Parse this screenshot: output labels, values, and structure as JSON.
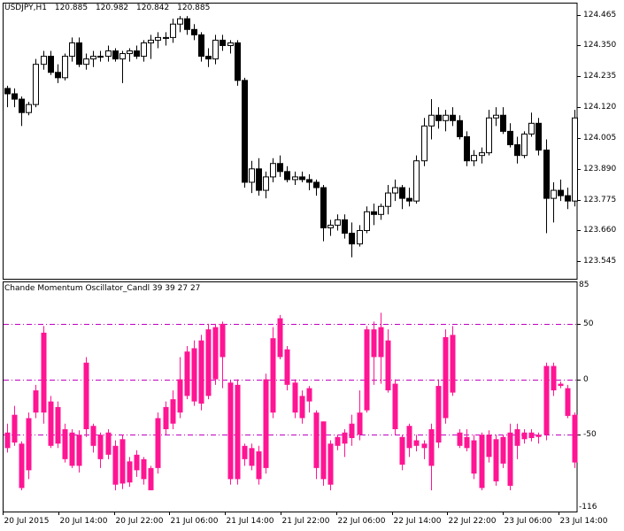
{
  "price_panel": {
    "symbol": "USDJPY,H1",
    "open": "120.885",
    "high": "120.982",
    "low": "120.842",
    "close": "120.885",
    "price_labels": [
      "124.465",
      "124.350",
      "124.235",
      "124.120",
      "124.005",
      "123.890",
      "123.775",
      "123.660",
      "123.545"
    ]
  },
  "indicator_panel": {
    "title": "Chande Momentum Oscillator_Candl 39 39 27 27",
    "top_label": "85",
    "bottom_label": "-116",
    "level_labels": [
      "50",
      "0",
      "-50"
    ]
  },
  "time_axis": {
    "labels": [
      "20 Jul 2015",
      "20 Jul 14:00",
      "20 Jul 22:00",
      "21 Jul 06:00",
      "21 Jul 14:00",
      "21 Jul 22:00",
      "22 Jul 06:00",
      "22 Jul 14:00",
      "22 Jul 22:00",
      "23 Jul 06:00",
      "23 Jul 14:00"
    ]
  },
  "colors": {
    "bull_body": "#ffffff",
    "bear_body": "#000000",
    "osc_up": "#008080",
    "osc_down": "#ff1493",
    "level_line": "#c000c0"
  },
  "chart_data": [
    {
      "type": "candlestick",
      "title": "USDJPY,H1",
      "ylim": [
        123.48,
        124.51
      ],
      "yticks": [
        124.465,
        124.35,
        124.235,
        124.12,
        124.005,
        123.89,
        123.775,
        123.66,
        123.545
      ],
      "x_tick_labels": [
        "20 Jul 2015",
        "20 Jul 14:00",
        "20 Jul 22:00",
        "21 Jul 06:00",
        "21 Jul 14:00",
        "21 Jul 22:00",
        "22 Jul 06:00",
        "22 Jul 14:00",
        "22 Jul 22:00",
        "23 Jul 06:00",
        "23 Jul 14:00"
      ],
      "candles_ohlc": [
        [
          124.19,
          124.2,
          124.12,
          124.17
        ],
        [
          124.17,
          124.19,
          124.12,
          124.15
        ],
        [
          124.15,
          124.16,
          124.05,
          124.1
        ],
        [
          124.1,
          124.14,
          124.09,
          124.13
        ],
        [
          124.13,
          124.3,
          124.12,
          124.28
        ],
        [
          124.28,
          124.33,
          124.26,
          124.31
        ],
        [
          124.31,
          124.33,
          124.24,
          124.25
        ],
        [
          124.25,
          124.28,
          124.21,
          124.23
        ],
        [
          124.23,
          124.32,
          124.22,
          124.31
        ],
        [
          124.31,
          124.38,
          124.29,
          124.36
        ],
        [
          124.36,
          124.38,
          124.27,
          124.28
        ],
        [
          124.28,
          124.32,
          124.26,
          124.3
        ],
        [
          124.3,
          124.33,
          124.27,
          124.31
        ],
        [
          124.31,
          124.33,
          124.29,
          124.31
        ],
        [
          124.31,
          124.35,
          124.29,
          124.33
        ],
        [
          124.33,
          124.34,
          124.29,
          124.3
        ],
        [
          124.3,
          124.33,
          124.21,
          124.32
        ],
        [
          124.32,
          124.34,
          124.29,
          124.33
        ],
        [
          124.33,
          124.35,
          124.3,
          124.31
        ],
        [
          124.31,
          124.37,
          124.29,
          124.36
        ],
        [
          124.36,
          124.39,
          124.3,
          124.37
        ],
        [
          124.37,
          124.4,
          124.34,
          124.38
        ],
        [
          124.38,
          124.4,
          124.35,
          124.38
        ],
        [
          124.38,
          124.45,
          124.36,
          124.43
        ],
        [
          124.43,
          124.46,
          124.4,
          124.45
        ],
        [
          124.45,
          124.46,
          124.39,
          124.41
        ],
        [
          124.41,
          124.43,
          124.37,
          124.39
        ],
        [
          124.39,
          124.4,
          124.29,
          124.31
        ],
        [
          124.31,
          124.34,
          124.27,
          124.3
        ],
        [
          124.3,
          124.39,
          124.28,
          124.37
        ],
        [
          124.37,
          124.39,
          124.33,
          124.35
        ],
        [
          124.35,
          124.37,
          124.32,
          124.36
        ],
        [
          124.36,
          124.37,
          124.2,
          124.22
        ],
        [
          124.22,
          124.23,
          123.82,
          123.84
        ],
        [
          123.84,
          123.92,
          123.8,
          123.89
        ],
        [
          123.89,
          123.93,
          123.79,
          123.81
        ],
        [
          123.81,
          123.88,
          123.78,
          123.86
        ],
        [
          123.86,
          123.93,
          123.84,
          123.91
        ],
        [
          123.91,
          123.94,
          123.86,
          123.88
        ],
        [
          123.88,
          123.9,
          123.84,
          123.85
        ],
        [
          123.85,
          123.88,
          123.83,
          123.86
        ],
        [
          123.86,
          123.88,
          123.84,
          123.85
        ],
        [
          123.85,
          123.87,
          123.81,
          123.84
        ],
        [
          123.84,
          123.85,
          123.79,
          123.82
        ],
        [
          123.82,
          123.83,
          123.62,
          123.67
        ],
        [
          123.67,
          123.7,
          123.64,
          123.68
        ],
        [
          123.68,
          123.72,
          123.66,
          123.7
        ],
        [
          123.7,
          123.72,
          123.63,
          123.65
        ],
        [
          123.65,
          123.69,
          123.56,
          123.61
        ],
        [
          123.61,
          123.68,
          123.6,
          123.66
        ],
        [
          123.66,
          123.75,
          123.65,
          123.73
        ],
        [
          123.73,
          123.76,
          123.68,
          123.72
        ],
        [
          123.72,
          123.76,
          123.7,
          123.75
        ],
        [
          123.75,
          123.83,
          123.72,
          123.8
        ],
        [
          123.8,
          123.85,
          123.77,
          123.82
        ],
        [
          123.82,
          123.83,
          123.74,
          123.78
        ],
        [
          123.78,
          123.82,
          123.75,
          123.77
        ],
        [
          123.77,
          123.94,
          123.76,
          123.92
        ],
        [
          123.92,
          124.08,
          123.9,
          124.05
        ],
        [
          124.05,
          124.15,
          124.0,
          124.09
        ],
        [
          124.09,
          124.12,
          124.04,
          124.07
        ],
        [
          124.07,
          124.11,
          124.03,
          124.09
        ],
        [
          124.09,
          124.12,
          124.05,
          124.07
        ],
        [
          124.07,
          124.09,
          124.0,
          124.01
        ],
        [
          124.01,
          124.03,
          123.9,
          123.92
        ],
        [
          123.92,
          123.96,
          123.9,
          123.94
        ],
        [
          123.94,
          123.97,
          123.91,
          123.95
        ],
        [
          123.95,
          124.11,
          123.94,
          124.08
        ],
        [
          124.08,
          124.12,
          124.05,
          124.09
        ],
        [
          124.09,
          124.12,
          124.02,
          124.03
        ],
        [
          124.03,
          124.06,
          123.97,
          123.98
        ],
        [
          123.98,
          124.01,
          123.91,
          123.94
        ],
        [
          123.94,
          124.03,
          123.93,
          124.02
        ],
        [
          124.02,
          124.1,
          124.01,
          124.06
        ],
        [
          124.06,
          124.08,
          123.94,
          123.96
        ],
        [
          123.96,
          124.0,
          123.65,
          123.78
        ],
        [
          123.78,
          123.84,
          123.69,
          123.81
        ],
        [
          123.81,
          123.85,
          123.77,
          123.79
        ],
        [
          123.79,
          123.82,
          123.74,
          123.77
        ],
        [
          123.77,
          124.11,
          123.75,
          124.08
        ]
      ]
    },
    {
      "type": "bar",
      "title": "Chande Momentum Oscillator_Candl 39 39 27 27",
      "ylim": [
        -116,
        85
      ],
      "levels": [
        50,
        0,
        -50
      ],
      "legend": "none",
      "series": [
        {
          "values_open_close_high_low": [
            [
              -48,
              -62,
              -40,
              -66
            ],
            [
              -32,
              -57,
              -24,
              -60
            ],
            [
              -58,
              -98,
              -56,
              -100
            ],
            [
              -35,
              -82,
              -30,
              -90
            ],
            [
              -10,
              -30,
              -5,
              -35
            ],
            [
              42,
              -30,
              48,
              -40
            ],
            [
              -20,
              -60,
              -15,
              -62
            ],
            [
              -25,
              -58,
              -20,
              -62
            ],
            [
              -45,
              -72,
              -40,
              -75
            ],
            [
              -48,
              -78,
              -45,
              -80
            ],
            [
              -50,
              -78,
              -46,
              -84
            ],
            [
              15,
              -45,
              20,
              -52
            ],
            [
              -42,
              -60,
              -40,
              -66
            ],
            [
              -50,
              -72,
              -48,
              -80
            ],
            [
              -48,
              -68,
              -45,
              -72
            ],
            [
              -60,
              -95,
              -55,
              -100
            ],
            [
              -54,
              -94,
              -50,
              -99
            ],
            [
              -74,
              -93,
              -70,
              -97
            ],
            [
              -68,
              -82,
              -64,
              -88
            ],
            [
              -72,
              -90,
              -70,
              -95
            ],
            [
              -80,
              -100,
              -78,
              -100
            ],
            [
              -35,
              -80,
              -30,
              -85
            ],
            [
              -25,
              -45,
              -20,
              -50
            ],
            [
              -18,
              -40,
              -10,
              -45
            ],
            [
              0,
              -30,
              20,
              -35
            ],
            [
              25,
              -15,
              30,
              -18
            ],
            [
              28,
              -20,
              35,
              -24
            ],
            [
              35,
              -22,
              40,
              -28
            ],
            [
              45,
              -15,
              50,
              -18
            ],
            [
              47,
              0,
              50,
              -5
            ],
            [
              50,
              20,
              52,
              -8
            ],
            [
              -3,
              -90,
              -1,
              -95
            ],
            [
              -5,
              -90,
              0,
              -95
            ],
            [
              -60,
              -72,
              -58,
              -78
            ],
            [
              -62,
              -78,
              -58,
              -82
            ],
            [
              -65,
              -90,
              -60,
              -95
            ],
            [
              0,
              -80,
              5,
              -85
            ],
            [
              37,
              -30,
              47,
              -35
            ],
            [
              55,
              20,
              58,
              18
            ],
            [
              27,
              -5,
              30,
              -10
            ],
            [
              -3,
              -30,
              0,
              -35
            ],
            [
              -15,
              -35,
              -10,
              -40
            ],
            [
              -8,
              -20,
              -6,
              -30
            ],
            [
              -30,
              -80,
              -28,
              -90
            ],
            [
              -38,
              -90,
              -38,
              -96
            ],
            [
              -58,
              -95,
              -55,
              -100
            ],
            [
              -52,
              -60,
              -50,
              -64
            ],
            [
              -48,
              -58,
              -45,
              -70
            ],
            [
              -40,
              -53,
              -32,
              -60
            ],
            [
              -30,
              -50,
              -10,
              -55
            ],
            [
              45,
              -28,
              48,
              -30
            ],
            [
              45,
              20,
              52,
              -5
            ],
            [
              47,
              20,
              60,
              -4
            ],
            [
              35,
              -10,
              45,
              -12
            ],
            [
              -4,
              -45,
              0,
              -50
            ],
            [
              -52,
              -77,
              -50,
              -82
            ],
            [
              -42,
              -62,
              -40,
              -70
            ],
            [
              -55,
              -60,
              -50,
              -65
            ],
            [
              -58,
              -62,
              -55,
              -72
            ],
            [
              -45,
              -78,
              -40,
              -100
            ],
            [
              -6,
              -57,
              0,
              -62
            ],
            [
              38,
              -35,
              45,
              -40
            ],
            [
              40,
              -12,
              48,
              -15
            ],
            [
              -48,
              -60,
              -45,
              -62
            ],
            [
              -52,
              -62,
              -45,
              -65
            ],
            [
              -55,
              -85,
              -50,
              -90
            ],
            [
              -50,
              -98,
              -48,
              -100
            ],
            [
              -50,
              -70,
              -46,
              -75
            ],
            [
              -54,
              -92,
              -50,
              -96
            ],
            [
              -52,
              -76,
              -50,
              -80
            ],
            [
              -48,
              -96,
              -40,
              -100
            ],
            [
              -45,
              -60,
              -40,
              -72
            ],
            [
              -48,
              -54,
              -45,
              -58
            ],
            [
              -48,
              -53,
              -45,
              -56
            ],
            [
              -50,
              -52,
              -48,
              -58
            ],
            [
              12,
              -50,
              15,
              -55
            ],
            [
              12,
              -10,
              15,
              -15
            ],
            [
              -4,
              -6,
              -2,
              -8
            ],
            [
              -8,
              -33,
              -5,
              -35
            ],
            [
              -32,
              -75,
              -30,
              -80
            ]
          ]
        }
      ]
    }
  ]
}
